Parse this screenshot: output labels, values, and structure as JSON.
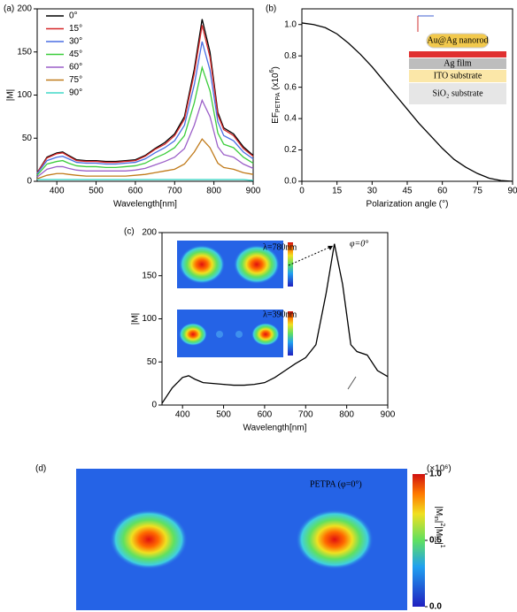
{
  "chart_data": [
    {
      "type": "line",
      "label": "(a)",
      "xlabel": "Wavelength[nm]",
      "ylabel": "|M|",
      "xlim": [
        350,
        900
      ],
      "ylim": [
        0,
        200
      ],
      "xticks": [
        400,
        500,
        600,
        700,
        800,
        900
      ],
      "yticks": [
        0,
        50,
        100,
        150,
        200
      ],
      "legend": "upper left",
      "x": [
        350,
        375,
        400,
        415,
        430,
        450,
        475,
        500,
        525,
        550,
        575,
        600,
        625,
        650,
        675,
        700,
        725,
        750,
        770,
        790,
        810,
        825,
        850,
        875,
        900
      ],
      "series": [
        {
          "name": "0°",
          "color": "#000000",
          "values": [
            10,
            28,
            33,
            34,
            30,
            25,
            24,
            24,
            23,
            23,
            24,
            25,
            30,
            38,
            45,
            55,
            75,
            130,
            188,
            150,
            80,
            62,
            55,
            40,
            30
          ]
        },
        {
          "name": "15°",
          "color": "#d62728",
          "values": [
            10,
            27,
            32,
            33,
            29,
            24,
            23,
            23,
            22,
            22,
            23,
            24,
            29,
            37,
            43,
            53,
            72,
            125,
            181,
            144,
            77,
            60,
            53,
            38,
            29
          ]
        },
        {
          "name": "30°",
          "color": "#4a6fe3",
          "values": [
            9,
            24,
            28,
            29,
            26,
            22,
            21,
            21,
            20,
            20,
            21,
            22,
            26,
            33,
            39,
            47,
            65,
            112,
            162,
            129,
            69,
            53,
            47,
            34,
            26
          ]
        },
        {
          "name": "45°",
          "color": "#3ccd3c",
          "values": [
            7,
            20,
            23,
            24,
            21,
            18,
            17,
            17,
            16,
            16,
            17,
            18,
            21,
            27,
            32,
            39,
            53,
            91,
            132,
            105,
            56,
            43,
            39,
            28,
            21
          ]
        },
        {
          "name": "60°",
          "color": "#9b5fc8",
          "values": [
            5,
            14,
            17,
            17,
            15,
            13,
            12,
            12,
            12,
            12,
            12,
            13,
            15,
            19,
            23,
            28,
            38,
            65,
            94,
            75,
            40,
            31,
            28,
            20,
            15
          ]
        },
        {
          "name": "75°",
          "color": "#c07a1a",
          "values": [
            3,
            7,
            9,
            9,
            8,
            7,
            6,
            6,
            6,
            6,
            6,
            7,
            8,
            10,
            12,
            14,
            20,
            34,
            49,
            39,
            21,
            16,
            14,
            10,
            8
          ]
        },
        {
          "name": "90°",
          "color": "#40d8c8",
          "values": [
            2,
            2,
            2,
            2,
            2,
            2,
            2,
            2,
            2,
            2,
            2,
            2,
            2,
            2,
            2,
            2,
            2,
            2,
            2,
            2,
            2,
            2,
            2,
            2,
            1
          ]
        }
      ]
    },
    {
      "type": "line",
      "label": "(b)",
      "xlabel": "Polarization angle (°)",
      "ylabel": [
        "EF",
        "PETPA",
        " (x10",
        "6",
        ")"
      ],
      "xlim": [
        0,
        90
      ],
      "ylim": [
        0,
        1.1
      ],
      "xticks": [
        0,
        15,
        30,
        45,
        60,
        75,
        90
      ],
      "yticks": [
        {
          "value": 0,
          "label": "0.0"
        },
        0.2,
        0.4,
        0.6,
        0.8,
        {
          "value": 1,
          "label": "1.0"
        }
      ],
      "x": [
        0,
        5,
        10,
        15,
        20,
        25,
        30,
        35,
        40,
        45,
        50,
        55,
        60,
        65,
        70,
        75,
        80,
        85,
        90
      ],
      "series": [
        {
          "color": "#000000",
          "values": [
            1.01,
            1.0,
            0.98,
            0.94,
            0.88,
            0.81,
            0.73,
            0.64,
            0.55,
            0.46,
            0.37,
            0.29,
            0.21,
            0.14,
            0.09,
            0.05,
            0.02,
            0.005,
            0
          ]
        }
      ],
      "inset_labels": [
        "Au@Ag nanorod",
        "Ag film",
        "ITO substrate",
        "SiO₂ substrate"
      ]
    },
    {
      "type": "line",
      "label": "(c)",
      "xlabel": "Wavelength[nm]",
      "ylabel": "|M|",
      "xlim": [
        350,
        900
      ],
      "ylim": [
        0,
        200
      ],
      "xticks": [
        400,
        500,
        600,
        700,
        800,
        900
      ],
      "yticks": [
        0,
        50,
        100,
        150,
        200
      ],
      "x": [
        350,
        375,
        400,
        415,
        430,
        450,
        475,
        500,
        525,
        550,
        575,
        600,
        625,
        650,
        675,
        700,
        725,
        750,
        770,
        790,
        810,
        825,
        850,
        875,
        900
      ],
      "series": [
        {
          "color": "#000000",
          "values": [
            2,
            20,
            32,
            34,
            30,
            26,
            25,
            24,
            23,
            23,
            24,
            26,
            32,
            40,
            48,
            55,
            70,
            130,
            187,
            140,
            70,
            62,
            58,
            40,
            33
          ]
        }
      ],
      "annotations": [
        "φ=0°",
        "λ=780nm",
        "λ=390nm"
      ]
    },
    {
      "type": "heatmap",
      "label": "(d)",
      "title": "PETPA (φ=0°)",
      "clim": [
        0,
        1
      ],
      "colorbar_ticks": [
        {
          "value": 0,
          "label": "0.0"
        },
        0.5,
        {
          "value": 1,
          "label": "1.0"
        }
      ],
      "colorbar_unit": "(×10⁶)",
      "colorbar_label": [
        "|M",
        "in",
        "|",
        "2",
        "|M",
        "sc",
        "|",
        "1"
      ]
    }
  ]
}
